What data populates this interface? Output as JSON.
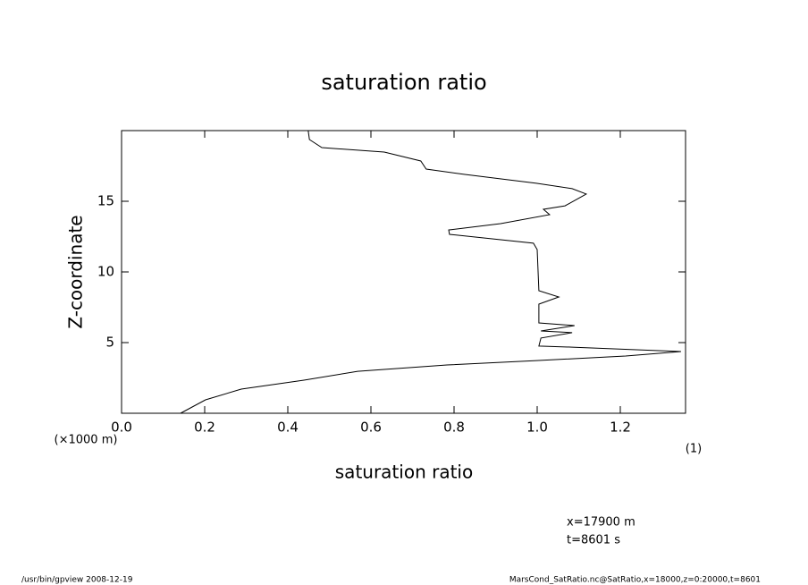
{
  "chart_data": {
    "type": "line",
    "title": "saturation ratio",
    "x_label": "saturation ratio",
    "y_label": "Z-coordinate",
    "y_unit": "(×1000 m)",
    "x_unit": "(1)",
    "annotations": [
      "x=17900 m",
      "t=8601 s"
    ],
    "footer_left": "/usr/bin/gpview  2008-12-19",
    "footer_right": "MarsCond_SatRatio.nc@SatRatio,x=18000,z=0:20000,t=8601",
    "color": "#000000",
    "x": [
      0.142,
      0.202,
      0.288,
      0.439,
      0.568,
      0.783,
      0.998,
      1.213,
      1.346,
      1.084,
      1.004,
      1.009,
      1.084,
      1.009,
      1.09,
      1.004,
      1.004,
      1.052,
      1.004,
      1.0,
      0.991,
      0.789,
      0.787,
      0.912,
      1.03,
      1.015,
      1.067,
      1.118,
      1.084,
      0.998,
      0.826,
      0.733,
      0.72,
      0.632,
      0.482,
      0.452,
      0.449
    ],
    "values": [
      0,
      0.95,
      1.71,
      2.34,
      2.97,
      3.42,
      3.73,
      4.05,
      4.37,
      4.68,
      4.75,
      5.32,
      5.7,
      5.82,
      6.2,
      6.39,
      7.72,
      8.23,
      8.67,
      11.58,
      12.03,
      12.66,
      12.97,
      13.42,
      14.05,
      14.43,
      14.68,
      15.51,
      15.89,
      16.27,
      16.9,
      17.28,
      17.85,
      18.48,
      18.8,
      19.37,
      20.0
    ],
    "xlim": [
      0,
      1.357
    ],
    "ylim": [
      0,
      20
    ],
    "xticks": [
      {
        "value": 0,
        "label": "0.0"
      },
      0.2,
      0.4,
      0.6,
      0.8,
      {
        "value": 1,
        "label": "1.0"
      },
      1.2
    ],
    "yticks": [
      5,
      10,
      15
    ]
  }
}
